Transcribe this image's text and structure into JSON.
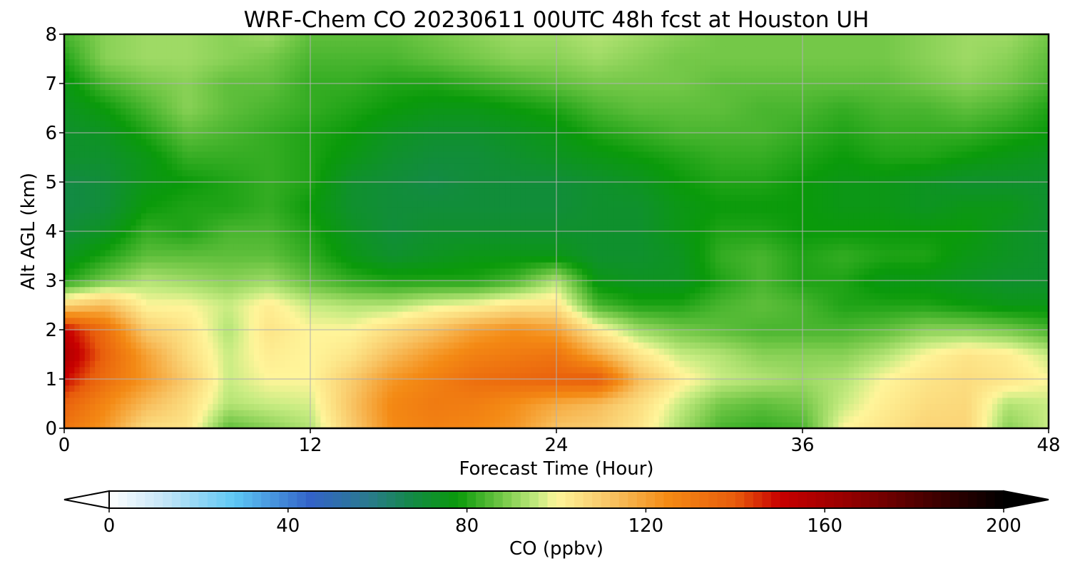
{
  "chart_data": {
    "type": "heatmap",
    "title": "WRF-Chem CO  20230611 00UTC 48h fcst at Houston UH",
    "xlabel": "Forecast Time (Hour)",
    "ylabel": "Alt AGL (km)",
    "xlim": [
      0,
      48
    ],
    "ylim": [
      0,
      8
    ],
    "x_ticks": [
      0,
      12,
      24,
      36,
      48
    ],
    "y_ticks": [
      0,
      1,
      2,
      3,
      4,
      5,
      6,
      7,
      8
    ],
    "grid": true,
    "colorbar": {
      "label": "CO  (ppbv)",
      "min": 0,
      "max": 200,
      "ticks": [
        0,
        40,
        80,
        120,
        160,
        200
      ],
      "extend": "both",
      "color_stops": [
        {
          "value": 0,
          "color": "#ffffff"
        },
        {
          "value": 12,
          "color": "#c6e6f7"
        },
        {
          "value": 28,
          "color": "#5ec8f5"
        },
        {
          "value": 45,
          "color": "#3363c8"
        },
        {
          "value": 58,
          "color": "#2a7a8e"
        },
        {
          "value": 68,
          "color": "#138a45"
        },
        {
          "value": 78,
          "color": "#0a9a0a"
        },
        {
          "value": 88,
          "color": "#74c848"
        },
        {
          "value": 96,
          "color": "#c8ec82"
        },
        {
          "value": 100,
          "color": "#fff59a"
        },
        {
          "value": 112,
          "color": "#f8c464"
        },
        {
          "value": 125,
          "color": "#f48a14"
        },
        {
          "value": 140,
          "color": "#e85c0c"
        },
        {
          "value": 150,
          "color": "#c80000"
        },
        {
          "value": 165,
          "color": "#960000"
        },
        {
          "value": 185,
          "color": "#3e0000"
        },
        {
          "value": 200,
          "color": "#000000"
        }
      ]
    },
    "x": [
      0,
      2,
      4,
      6,
      8,
      10,
      12,
      14,
      16,
      18,
      20,
      22,
      24,
      26,
      28,
      30,
      32,
      34,
      36,
      38,
      40,
      42,
      44,
      46,
      48
    ],
    "y": [
      0,
      0.5,
      1,
      1.5,
      2,
      2.5,
      3,
      3.5,
      4,
      4.5,
      5,
      5.5,
      6,
      6.5,
      7,
      7.5,
      8
    ],
    "z_rows_by_altitude": [
      [
        132,
        122,
        106,
        104,
        86,
        90,
        94,
        110,
        125,
        128,
        126,
        122,
        112,
        110,
        104,
        93,
        84,
        82,
        84,
        100,
        104,
        108,
        108,
        90,
        96
      ],
      [
        138,
        126,
        114,
        106,
        94,
        96,
        97,
        112,
        126,
        130,
        129,
        124,
        118,
        114,
        106,
        96,
        88,
        86,
        88,
        96,
        102,
        106,
        107,
        94,
        96
      ],
      [
        150,
        134,
        122,
        110,
        96,
        100,
        100,
        110,
        122,
        128,
        134,
        136,
        138,
        140,
        114,
        102,
        96,
        94,
        92,
        94,
        100,
        104,
        106,
        104,
        100
      ],
      [
        158,
        138,
        120,
        106,
        96,
        102,
        100,
        104,
        114,
        122,
        128,
        130,
        132,
        118,
        104,
        96,
        94,
        90,
        90,
        90,
        94,
        100,
        104,
        102,
        96
      ],
      [
        152,
        134,
        110,
        104,
        94,
        104,
        100,
        100,
        106,
        112,
        120,
        124,
        120,
        102,
        92,
        88,
        86,
        84,
        84,
        84,
        86,
        90,
        90,
        88,
        84
      ],
      [
        108,
        114,
        100,
        100,
        96,
        102,
        96,
        94,
        94,
        98,
        100,
        104,
        104,
        84,
        80,
        80,
        84,
        86,
        84,
        80,
        80,
        80,
        78,
        76,
        76
      ],
      [
        80,
        88,
        94,
        92,
        90,
        92,
        86,
        82,
        80,
        80,
        80,
        84,
        94,
        76,
        74,
        74,
        80,
        84,
        80,
        80,
        76,
        76,
        74,
        72,
        72
      ],
      [
        74,
        80,
        86,
        86,
        86,
        86,
        82,
        76,
        72,
        74,
        76,
        76,
        76,
        72,
        72,
        74,
        82,
        84,
        80,
        82,
        80,
        80,
        76,
        74,
        72
      ],
      [
        70,
        74,
        82,
        80,
        84,
        84,
        80,
        74,
        70,
        72,
        72,
        72,
        72,
        72,
        72,
        76,
        80,
        80,
        78,
        78,
        78,
        78,
        78,
        74,
        72
      ],
      [
        68,
        70,
        78,
        80,
        80,
        82,
        78,
        72,
        70,
        70,
        70,
        70,
        70,
        72,
        72,
        76,
        78,
        78,
        78,
        76,
        76,
        74,
        76,
        76,
        72
      ],
      [
        68,
        70,
        76,
        78,
        80,
        82,
        80,
        72,
        70,
        68,
        70,
        70,
        70,
        72,
        74,
        78,
        80,
        80,
        78,
        76,
        76,
        74,
        72,
        72,
        72
      ],
      [
        72,
        72,
        76,
        82,
        82,
        82,
        80,
        76,
        72,
        70,
        70,
        72,
        74,
        76,
        78,
        80,
        82,
        82,
        80,
        78,
        80,
        80,
        78,
        76,
        74
      ],
      [
        72,
        74,
        80,
        86,
        84,
        82,
        80,
        78,
        74,
        72,
        72,
        74,
        76,
        80,
        82,
        84,
        84,
        84,
        82,
        80,
        82,
        82,
        82,
        80,
        78
      ],
      [
        74,
        78,
        84,
        90,
        86,
        84,
        82,
        80,
        78,
        76,
        76,
        78,
        80,
        84,
        86,
        86,
        86,
        84,
        84,
        82,
        84,
        84,
        86,
        84,
        80
      ],
      [
        76,
        84,
        88,
        90,
        86,
        86,
        82,
        82,
        80,
        80,
        82,
        84,
        86,
        88,
        88,
        88,
        86,
        86,
        86,
        86,
        86,
        88,
        90,
        88,
        84
      ],
      [
        80,
        90,
        92,
        92,
        90,
        88,
        84,
        84,
        84,
        86,
        88,
        90,
        90,
        92,
        90,
        88,
        88,
        88,
        88,
        88,
        88,
        90,
        92,
        90,
        86
      ],
      [
        84,
        90,
        92,
        92,
        90,
        92,
        86,
        86,
        86,
        88,
        90,
        92,
        92,
        94,
        92,
        90,
        88,
        88,
        88,
        88,
        88,
        90,
        92,
        92,
        88
      ]
    ]
  }
}
